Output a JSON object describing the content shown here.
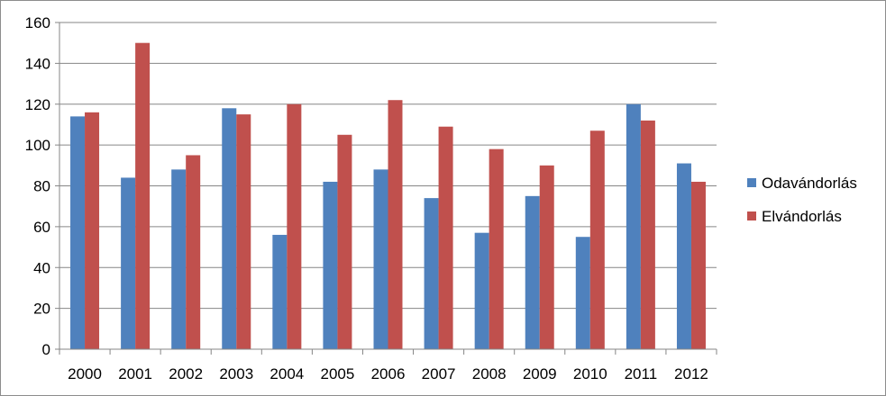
{
  "chart_data": {
    "type": "bar",
    "title": "",
    "xlabel": "",
    "ylabel": "",
    "categories": [
      "2000",
      "2001",
      "2002",
      "2003",
      "2004",
      "2005",
      "2006",
      "2007",
      "2008",
      "2009",
      "2010",
      "2011",
      "2012"
    ],
    "series": [
      {
        "name": "Odavándorlás",
        "color": "#4f81bd",
        "values": [
          114,
          84,
          88,
          118,
          56,
          82,
          88,
          74,
          57,
          75,
          55,
          120,
          91
        ]
      },
      {
        "name": "Elvándorlás",
        "color": "#c0504d",
        "values": [
          116,
          150,
          95,
          115,
          120,
          105,
          122,
          109,
          98,
          90,
          107,
          112,
          82
        ]
      }
    ],
    "ylim": [
      0,
      160
    ],
    "yticks": [
      0,
      20,
      40,
      60,
      80,
      100,
      120,
      140,
      160
    ],
    "grid": true,
    "legend_position": "right"
  }
}
